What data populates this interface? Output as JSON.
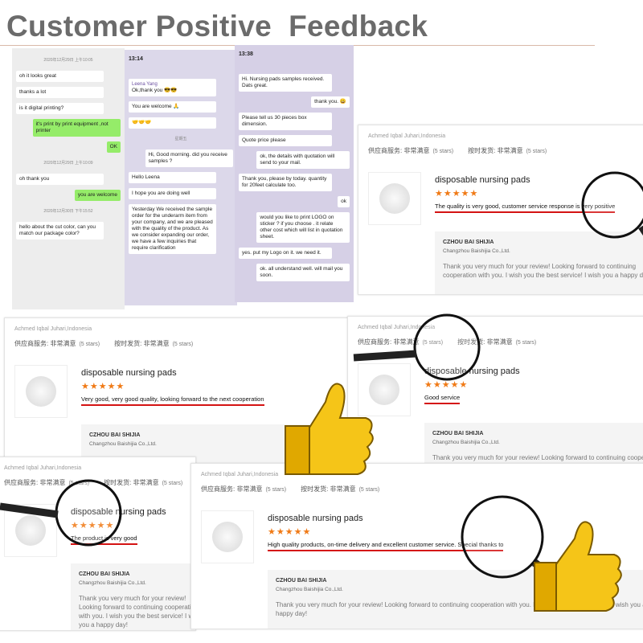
{
  "header": {
    "title": "Customer Positive  Feedback"
  },
  "chats": [
    {
      "messages": [
        {
          "text": "2020年12月29日 上午10:05",
          "side": "system"
        },
        {
          "text": "oh it looks great",
          "side": "left"
        },
        {
          "text": "thanks a lot",
          "side": "left"
        },
        {
          "text": "is it digital printing?",
          "side": "left"
        },
        {
          "text": "it's print by print equipment ,not printer",
          "side": "right"
        },
        {
          "text": "OK",
          "side": "right"
        },
        {
          "text": "2020年12月29日 上午10:09",
          "side": "system"
        },
        {
          "text": "oh thank you",
          "side": "left"
        },
        {
          "text": "you are welcome",
          "side": "right"
        },
        {
          "text": "2020年12月30日 下午15:52",
          "side": "system"
        },
        {
          "text": "hello about the cut color, can you match our package color?",
          "side": "left"
        }
      ]
    },
    {
      "time": "13:14",
      "messages": [
        {
          "sender": "Leena Yang",
          "text": "Ok,thank you 😎😎",
          "side": "left"
        },
        {
          "text": "You are welcome 🙏",
          "side": "left"
        },
        {
          "text": "🤝🤝🤝",
          "side": "left"
        },
        {
          "text": "星期五",
          "side": "system"
        },
        {
          "text": "Hi, Good morning. did you receive samples ?",
          "side": "right"
        },
        {
          "text": "Hello Leena",
          "side": "left"
        },
        {
          "text": "I hope you are doing well",
          "side": "left"
        },
        {
          "text": "Yesterday We received the sample order for the underarm item from your company, and we are pleased with the quality of the product. As we consider expanding our order, we have a few inquiries that require clarification",
          "side": "left"
        }
      ]
    },
    {
      "time": "13:38",
      "messages": [
        {
          "text": "Hi. Nursing pads samples received. Dats great.",
          "side": "left"
        },
        {
          "text": "thank you. 😀",
          "side": "right"
        },
        {
          "text": "Please tell us 30 pieces box dimension.",
          "side": "left"
        },
        {
          "text": "Quote price please",
          "side": "left"
        },
        {
          "text": "ok, the details with quotation will send to your mail.",
          "side": "right"
        },
        {
          "text": "Thank you, please by today. quantity for 20feet calculate too.",
          "side": "left"
        },
        {
          "text": "ok",
          "side": "right"
        },
        {
          "text": "would you like to print LOGO on sticker ? if you choose . it relate other cost which will list in quotation sheet.",
          "side": "right"
        },
        {
          "text": "yes. put my Logo on it. we need it.",
          "side": "left"
        },
        {
          "text": "ok. all understand well. will mail you soon.",
          "side": "right"
        }
      ]
    }
  ],
  "reviews": [
    {
      "buyer": "Achmed Iqbal Juhari,Indonesia",
      "service": "供应商服务: 非常满意",
      "service_stars": "(5 stars)",
      "delivery": "按时发货: 非常满意",
      "delivery_stars": "(5 stars)",
      "product": "disposable nursing pads",
      "comment": "The quality is very good, customer service response is very positive",
      "seller": "CZHOU BAI SHIJIA",
      "company": "Changzhou Baishijia Co.,Ltd.",
      "reply": "Thank you very much for your review! Looking forward to continuing cooperation with you. I wish you the best service! I wish you a happy day!"
    },
    {
      "buyer": "Achmed Iqbal Juhari,Indonesia",
      "service": "供应商服务: 非常满意",
      "service_stars": "(5 stars)",
      "delivery": "按时发货: 非常满意",
      "delivery_stars": "(5 stars)",
      "product": "disposable nursing pads",
      "comment": "Very good, very good quality, looking forward to the next cooperation",
      "seller": "CZHOU BAI SHIJIA",
      "company": "Changzhou Baishijia Co.,Ltd."
    },
    {
      "buyer": "Achmed Iqbal Juhari,Indonesia",
      "service": "供应商服务: 非常满意",
      "service_stars": "(5 stars)",
      "delivery": "按时发货: 非常满意",
      "delivery_stars": "(5 stars)",
      "product": "disposable nursing pads",
      "comment": "Good service",
      "seller": "CZHOU BAI SHIJIA",
      "company": "Changzhou Baishijia Co.,Ltd.",
      "reply": "Thank you very much for your review! Looking forward to continuing cooperation with you. I wish you the best service! I wish you a happy day!"
    },
    {
      "buyer": "Achmed Iqbal Juhari,Indonesia",
      "service": "供应商服务: 非常满意",
      "service_stars": "(5 stars)",
      "delivery": "按时发货: 非常满意",
      "delivery_stars": "(5 stars)",
      "product": "disposable nursing pads",
      "comment": "The product is very good",
      "seller": "CZHOU BAI SHIJIA",
      "company": "Changzhou Baishijia Co.,Ltd.",
      "reply": "Thank you very much for your review! Looking forward to continuing cooperation with you. I wish you the best service! I wish you a happy day!"
    },
    {
      "buyer": "Achmed Iqbal Juhari,Indonesia",
      "service": "供应商服务: 非常满意",
      "service_stars": "(5 stars)",
      "delivery": "按时发货: 非常满意",
      "delivery_stars": "(5 stars)",
      "product": "disposable nursing pads",
      "comment": "High quality products, on-time delivery and excellent customer service. Special thanks to",
      "seller": "CZHOU BAI SHIJIA",
      "company": "Changzhou Baishijia Co.,Ltd.",
      "reply": "Thank you very much for your review! Looking forward to continuing cooperation with you. I wish you the best service! I wish you a happy day!"
    }
  ]
}
